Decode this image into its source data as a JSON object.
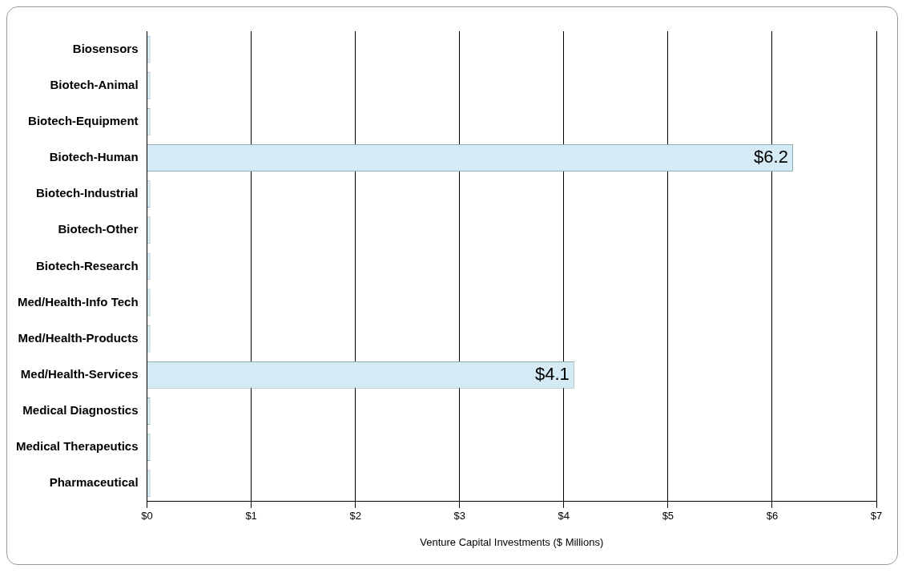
{
  "chart_data": {
    "type": "bar",
    "orientation": "horizontal",
    "xlabel": "Venture Capital Investments ($ Millions)",
    "categories": [
      "Biosensors",
      "Biotech-Animal",
      "Biotech-Equipment",
      "Biotech-Human",
      "Biotech-Industrial",
      "Biotech-Other",
      "Biotech-Research",
      "Med/Health-Info Tech",
      "Med/Health-Products",
      "Med/Health-Services",
      "Medical Diagnostics",
      "Medical Therapeutics",
      "Pharmaceutical"
    ],
    "values": [
      0,
      0,
      0,
      6.2,
      0,
      0,
      0,
      0,
      0,
      4.1,
      0,
      0,
      0
    ],
    "value_labels": [
      null,
      null,
      null,
      "$6.2",
      null,
      null,
      null,
      null,
      null,
      "$4.1",
      null,
      null,
      null
    ],
    "color": "#d4eaf4",
    "xlim": [
      0,
      7
    ],
    "xticks": [
      {
        "value": 0,
        "label": "$0"
      },
      {
        "value": 1,
        "label": "$1"
      },
      {
        "value": 2,
        "label": "$2"
      },
      {
        "value": 3,
        "label": "$3"
      },
      {
        "value": 4,
        "label": "$4"
      },
      {
        "value": 5,
        "label": "$5"
      },
      {
        "value": 6,
        "label": "$6"
      },
      {
        "value": 7,
        "label": "$7"
      }
    ],
    "grid": "x",
    "legend": false
  }
}
